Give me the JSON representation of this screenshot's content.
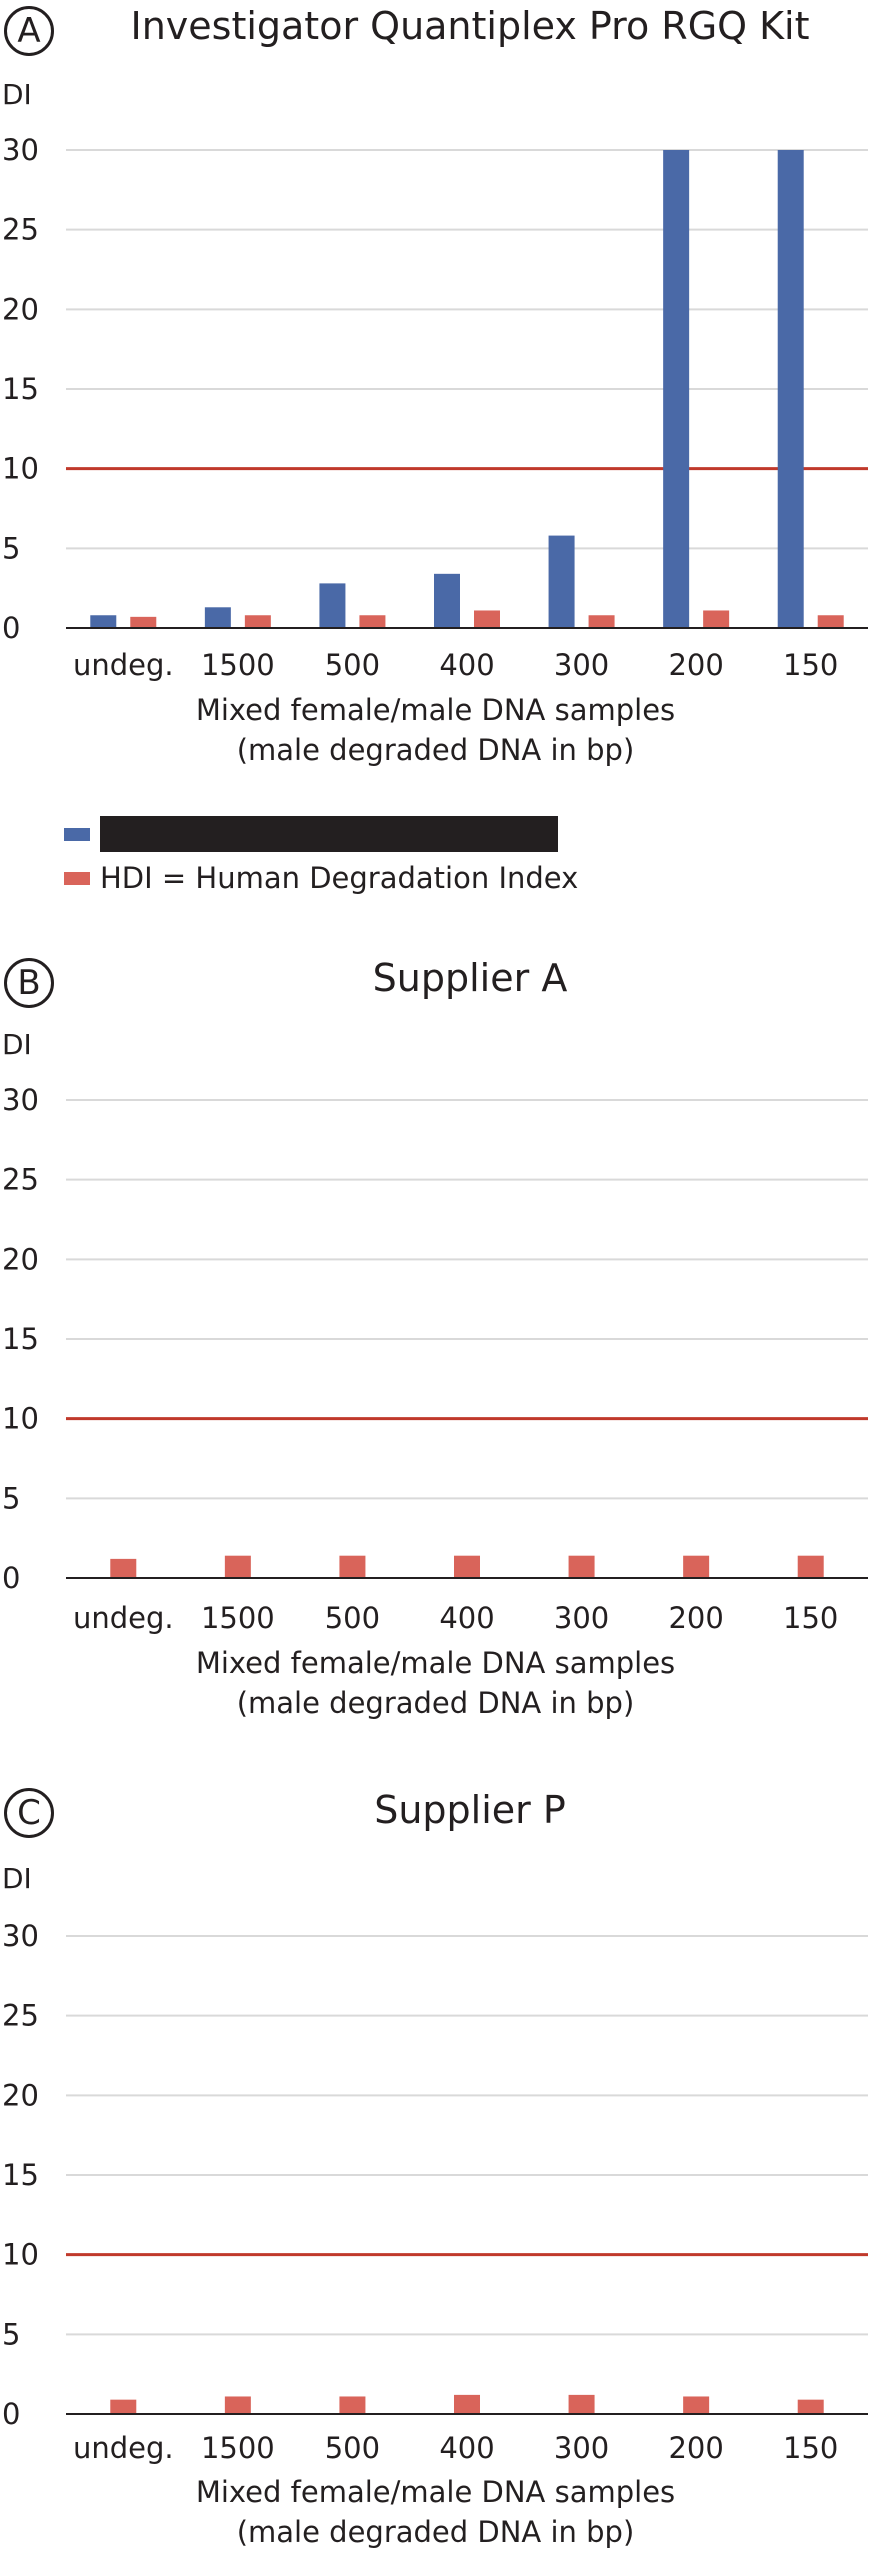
{
  "colors": {
    "blue": "#4a69a7",
    "red": "#d9645a",
    "threshold": "#c0392b",
    "grid": "#d9d9d9",
    "axis": "#231f20"
  },
  "legend": {
    "series1_label": "",
    "series2_label": "HDI = Human Degradation Index"
  },
  "chart_data": [
    {
      "type": "bar",
      "panel": "A",
      "title": "Investigator Quantiplex Pro RGQ Kit",
      "ylabel": "DI",
      "xlabel": "Mixed female/male DNA samples",
      "xlabel2": "(male degraded DNA in bp)",
      "categories": [
        "undeg.",
        "1500",
        "500",
        "400",
        "300",
        "200",
        "150"
      ],
      "yticks": [
        0,
        5,
        10,
        15,
        20,
        25,
        30
      ],
      "ylim": [
        0,
        30
      ],
      "threshold": 10,
      "grid": true,
      "series": [
        {
          "values": [
            0.8,
            1.3,
            2.8,
            3.4,
            5.8,
            30,
            30
          ]
        },
        {
          "name": "HDI = Human Degradation Index",
          "values": [
            0.7,
            0.8,
            0.8,
            1.1,
            0.8,
            1.1,
            0.8
          ]
        }
      ]
    },
    {
      "type": "bar",
      "panel": "B",
      "title": "Supplier A",
      "ylabel": "DI",
      "xlabel": "Mixed female/male DNA samples",
      "xlabel2": "(male degraded DNA in bp)",
      "categories": [
        "undeg.",
        "1500",
        "500",
        "400",
        "300",
        "200",
        "150"
      ],
      "yticks": [
        0,
        5,
        10,
        15,
        20,
        25,
        30
      ],
      "ylim": [
        0,
        30
      ],
      "threshold": 10,
      "grid": true,
      "series": [
        {
          "name": "HDI = Human Degradation Index",
          "values": [
            1.2,
            1.4,
            1.4,
            1.4,
            1.4,
            1.4,
            1.4
          ]
        }
      ]
    },
    {
      "type": "bar",
      "panel": "C",
      "title": "Supplier P",
      "ylabel": "DI",
      "xlabel": "Mixed female/male DNA samples",
      "xlabel2": "(male degraded DNA in bp)",
      "categories": [
        "undeg.",
        "1500",
        "500",
        "400",
        "300",
        "200",
        "150"
      ],
      "yticks": [
        0,
        5,
        10,
        15,
        20,
        25,
        30
      ],
      "ylim": [
        0,
        30
      ],
      "threshold": 10,
      "grid": true,
      "series": [
        {
          "name": "HDI = Human Degradation Index",
          "values": [
            0.9,
            1.1,
            1.1,
            1.2,
            1.2,
            1.1,
            0.9
          ]
        }
      ]
    }
  ]
}
